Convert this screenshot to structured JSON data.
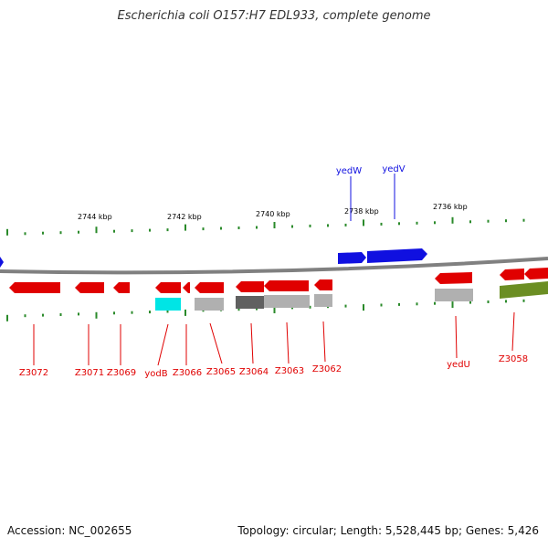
{
  "title": "Escherichia coli O157:H7 EDL933, complete genome",
  "footer": {
    "accession": "Accession: NC_002655",
    "summary": "Topology: circular; Length: 5,528,445 bp; Genes: 5,426"
  },
  "scale_labels": [
    "2744 kbp",
    "2742 kbp",
    "2740 kbp",
    "2738 kbp",
    "2736 kbp"
  ],
  "colors": {
    "forward": "#1010e0",
    "reverse": "#e00000",
    "backbone": "#808080",
    "ticks": "#2a8a2a",
    "cyan": "#00e5e5",
    "olive": "#6b8e23",
    "grey": "#b0b0b0",
    "dark_grey": "#606060"
  },
  "genes": {
    "forward": [
      "yedW",
      "yedV"
    ],
    "reverse": [
      "Z3072",
      "Z3071",
      "Z3069",
      "yodB",
      "Z3066",
      "Z3065",
      "Z3064",
      "Z3063",
      "Z3062",
      "yedU",
      "Z3058"
    ]
  }
}
